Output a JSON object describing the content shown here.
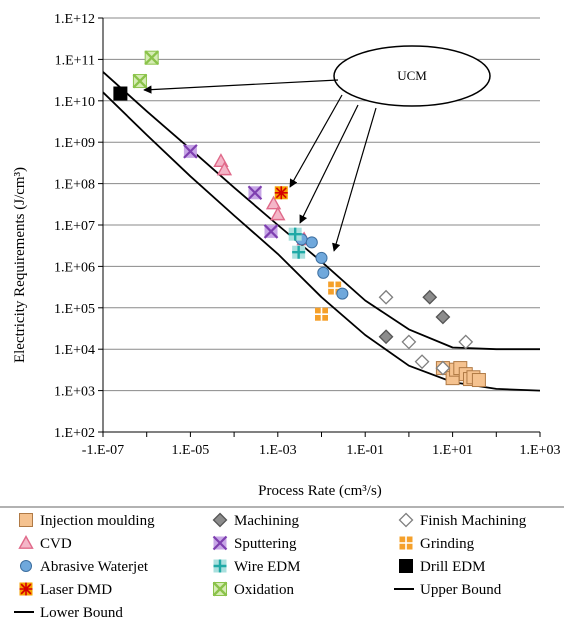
{
  "chart_data": {
    "type": "scatter",
    "xlabel": "Process Rate (cm³/s)",
    "ylabel": "Electricity Requirements (J/cm³)",
    "x_scale": "log",
    "y_scale": "log",
    "xlim": [
      1e-07,
      1000.0
    ],
    "ylim": [
      100.0,
      1000000000000.0
    ],
    "x_tick_labels": [
      "-1.E-07",
      "1.E-05",
      "1.E-03",
      "1.E-01",
      "1.E+01",
      "1.E+03"
    ],
    "y_tick_labels": [
      "1.E+02",
      "1.E+03",
      "1.E+04",
      "1.E+05",
      "1.E+06",
      "1.E+07",
      "1.E+08",
      "1.E+09",
      "1.E+10",
      "1.E+11",
      "1.E+12"
    ],
    "grid": "horizontal",
    "legend_position": "bottom",
    "annotation": {
      "text": "UCM"
    },
    "series": [
      {
        "name": "Injection moulding",
        "marker": "square",
        "color": "#f5c28f",
        "x": [
          6,
          10,
          12,
          15,
          20,
          25,
          30,
          40
        ],
        "y": [
          3500,
          2000,
          3200,
          3500,
          2500,
          1900,
          2100,
          1800
        ]
      },
      {
        "name": "Machining",
        "marker": "diamond",
        "color": "#8c8c8c",
        "x": [
          3,
          6,
          0.3
        ],
        "y": [
          180000,
          60000,
          20000
        ]
      },
      {
        "name": "Finish Machining",
        "marker": "diamond-open",
        "color": "#7f7f7f",
        "x": [
          0.3,
          1,
          2,
          6,
          20
        ],
        "y": [
          180000,
          15000,
          5000,
          3500,
          15000
        ]
      },
      {
        "name": "CVD",
        "marker": "triangle",
        "color": "#e06a8a",
        "x": [
          5e-05,
          6e-05,
          0.0008,
          0.001,
          0.004
        ],
        "y": [
          350000000,
          220000000,
          33000000,
          18000000,
          4500000
        ]
      },
      {
        "name": "Sputtering",
        "marker": "x",
        "color": "#7e3fb0",
        "x": [
          1e-05,
          0.0003,
          0.0007
        ],
        "y": [
          600000000,
          60000000,
          7000000
        ]
      },
      {
        "name": "Grinding",
        "marker": "plus-square",
        "color": "#f5a02a",
        "x": [
          0.02,
          0.01
        ],
        "y": [
          300000,
          70000
        ]
      },
      {
        "name": "Abrasive Waterjet",
        "marker": "circle",
        "color": "#6fa8dc",
        "x": [
          0.0035,
          0.006,
          0.01,
          0.011,
          0.03
        ],
        "y": [
          4500000,
          3800000,
          1600000,
          700000,
          220000
        ]
      },
      {
        "name": "Wire EDM",
        "marker": "plus",
        "color": "#1fa9a6",
        "x": [
          0.0025,
          0.003
        ],
        "y": [
          6000000,
          2200000
        ]
      },
      {
        "name": "Drill EDM",
        "marker": "square",
        "color": "#000000",
        "x": [
          2.5e-07
        ],
        "y": [
          15000000000
        ]
      },
      {
        "name": "Laser DMD",
        "marker": "asterisk",
        "color": "#f5a000",
        "x": [
          0.0012
        ],
        "y": [
          60000000
        ]
      },
      {
        "name": "Oxidation",
        "marker": "x-box",
        "color": "#8bc34a",
        "x": [
          1.3e-06,
          7e-07
        ],
        "y": [
          110000000000,
          30000000000
        ]
      },
      {
        "name": "Upper Bound",
        "marker": "line",
        "color": "#000000",
        "x": [
          1e-07,
          1e-06,
          1e-05,
          0.0001,
          0.001,
          0.01,
          0.1,
          1.0,
          10.0,
          100.0,
          1000.0
        ],
        "y": [
          50000000000,
          5600000000,
          680000000,
          80000000,
          10000000,
          1300000,
          150000,
          30000,
          11000,
          10000,
          10000
        ]
      },
      {
        "name": "Lower Bound",
        "marker": "line",
        "color": "#000000",
        "x": [
          1e-07,
          1e-06,
          1e-05,
          0.0001,
          0.001,
          0.01,
          0.1,
          1.0,
          10.0,
          100.0,
          1000.0
        ],
        "y": [
          16000000000,
          1500000000,
          150000000,
          17000000,
          2000000,
          180000,
          22000,
          4000,
          1600,
          1100,
          1000
        ]
      }
    ]
  }
}
